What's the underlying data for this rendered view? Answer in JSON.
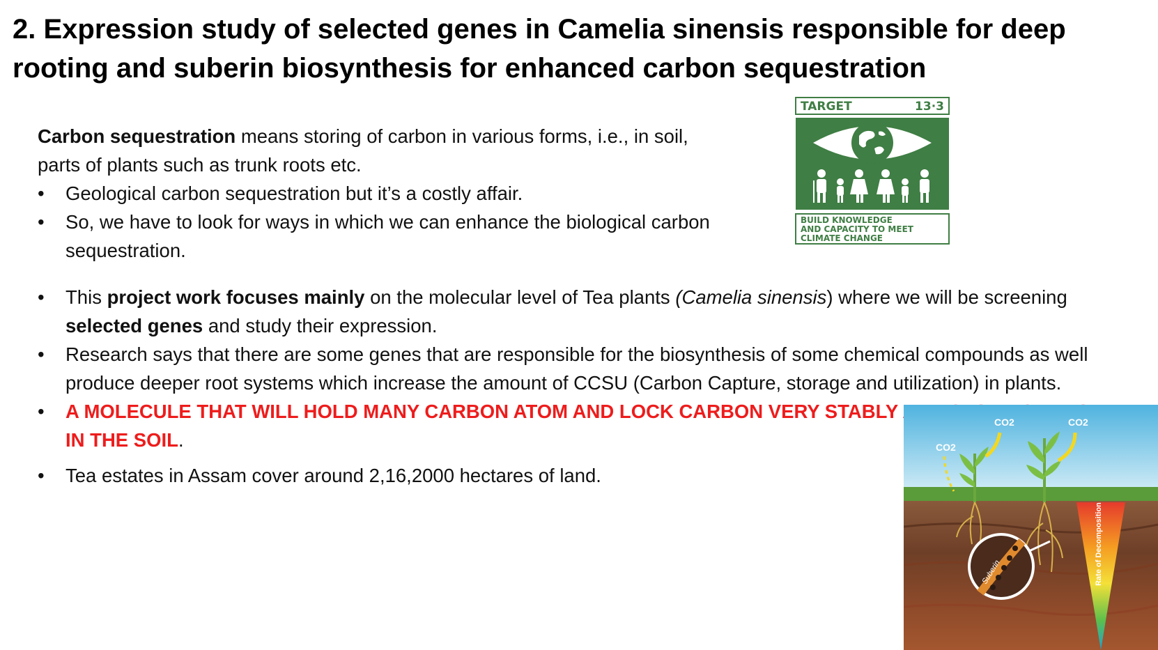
{
  "slide": {
    "title": "2. Expression study of selected genes in Camelia sinensis responsible for deep rooting and suberin biosynthesis for enhanced carbon sequestration"
  },
  "intro": {
    "term": "Carbon sequestration",
    "definition": " means storing of carbon in various forms, i.e., in soil, parts of plants such as trunk roots etc."
  },
  "bullets_top": [
    "Geological carbon  sequestration but it’s a costly affair.",
    "So, we have to look for ways in which we can enhance the biological carbon sequestration."
  ],
  "bullets_main": {
    "b1": {
      "p1": "This ",
      "p2": "project work focuses mainly",
      "p3": " on the molecular level of Tea plants ",
      "p4": "(Camelia sinensis",
      "p5": ") where we will be screening ",
      "p6": "selected genes",
      "p7": " and study their expression."
    },
    "b2": "Research says that there are some genes that are responsible for the biosynthesis of some chemical compounds as well produce deeper root systems which increase the amount of CCSU (Carbon Capture, storage and utilization) in plants.",
    "b3": {
      "red": " A MOLECULE THAT WILL HOLD MANY CARBON ATOM AND LOCK CARBON VERY STABLY AND STORE CARBON IN THE SOIL",
      "tail": "."
    },
    "b4": " Tea estates in Assam cover around 2,16,2000 hectares of land."
  },
  "bullet_symbol": "•",
  "sdg_badge": {
    "target_label": "TARGET",
    "target_number": "13·3",
    "caption_line1": "BUILD KNOWLEDGE",
    "caption_line2": "AND CAPACITY TO MEET",
    "caption_line3": "CLIMATE CHANGE",
    "color": "#3f7e44"
  },
  "illustration": {
    "co2_labels": [
      "CO2",
      "CO2",
      "CO2"
    ],
    "suberin_label": "Suberin",
    "scale_label": "Rate of Decomposition"
  },
  "colors": {
    "highlight_red": "#ee1c1c",
    "sdg_green": "#3f7e44"
  }
}
